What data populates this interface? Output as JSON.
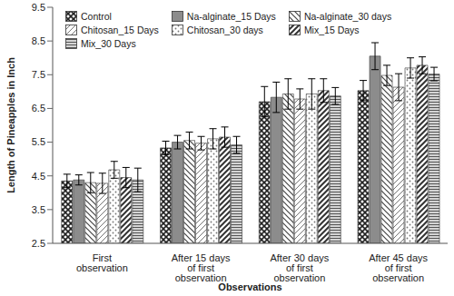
{
  "chart_data": {
    "type": "bar",
    "x_label": "Observations",
    "y_label": "Length of Pineapples in Inch",
    "categories": [
      "First observation",
      "After 15 days of first observation",
      "After 30 days of first observation",
      "After 45 days of first observation"
    ],
    "series": [
      {
        "name": "Control",
        "color": "#222222",
        "values": [
          4.35,
          5.33,
          6.7,
          7.03
        ],
        "errors": [
          0.2,
          0.2,
          0.45,
          0.3
        ]
      },
      {
        "name": "Na-alginate_15 Days",
        "color": "#8c8c8c",
        "values": [
          4.38,
          5.5,
          6.83,
          8.05
        ],
        "errors": [
          0.15,
          0.2,
          0.45,
          0.4
        ]
      },
      {
        "name": "Na-alginate_30 days",
        "color": "#444444",
        "values": [
          4.3,
          5.55,
          6.93,
          7.48
        ],
        "errors": [
          0.3,
          0.25,
          0.45,
          0.3
        ]
      },
      {
        "name": "Chitosan_15 Days",
        "color": "#666666",
        "values": [
          4.28,
          5.47,
          6.78,
          7.13
        ],
        "errors": [
          0.3,
          0.2,
          0.3,
          0.4
        ]
      },
      {
        "name": "Chitosan_30 days",
        "color": "#777777",
        "values": [
          4.68,
          5.6,
          6.93,
          7.7
        ],
        "errors": [
          0.25,
          0.3,
          0.45,
          0.3
        ]
      },
      {
        "name": "Mix_15 Days",
        "color": "#333333",
        "values": [
          4.45,
          5.65,
          7.03,
          7.78
        ],
        "errors": [
          0.3,
          0.3,
          0.35,
          0.25
        ]
      },
      {
        "name": "Mix_30 Days",
        "color": "#555555",
        "values": [
          4.38,
          5.42,
          6.87,
          7.52
        ],
        "errors": [
          0.35,
          0.25,
          0.25,
          0.2
        ]
      }
    ],
    "ylim": [
      2.5,
      9.5
    ],
    "yticks": [
      2.5,
      3.5,
      4.5,
      5.5,
      6.5,
      7.5,
      8.5,
      9.5
    ],
    "grid": false,
    "legend": "top-left"
  }
}
